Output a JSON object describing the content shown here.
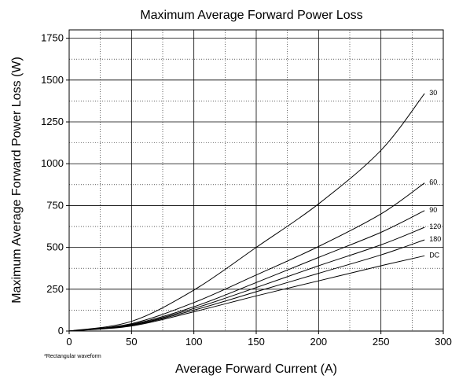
{
  "chart_data": {
    "type": "line",
    "title": "Maximum Average Forward Power Loss",
    "xlabel": "Average Forward Current (A)",
    "ylabel": "Maximum Average Forward Power Loss (W)",
    "xlim": [
      0,
      300
    ],
    "ylim": [
      0,
      1800
    ],
    "x_ticks": [
      0,
      50,
      100,
      150,
      200,
      250,
      300
    ],
    "y_ticks": [
      0,
      250,
      500,
      750,
      1000,
      1250,
      1500,
      1750
    ],
    "grid": true,
    "footnote": "*Rectangular waveform",
    "series": [
      {
        "name": "30",
        "points": [
          [
            0,
            0
          ],
          [
            50,
            58
          ],
          [
            100,
            245
          ],
          [
            150,
            500
          ],
          [
            200,
            760
          ],
          [
            250,
            1080
          ],
          [
            285,
            1420
          ]
        ]
      },
      {
        "name": "60",
        "points": [
          [
            0,
            0
          ],
          [
            50,
            44
          ],
          [
            100,
            170
          ],
          [
            150,
            335
          ],
          [
            200,
            505
          ],
          [
            250,
            700
          ],
          [
            285,
            885
          ]
        ]
      },
      {
        "name": "90",
        "points": [
          [
            0,
            0
          ],
          [
            50,
            40
          ],
          [
            100,
            145
          ],
          [
            150,
            290
          ],
          [
            200,
            440
          ],
          [
            250,
            590
          ],
          [
            285,
            720
          ]
        ]
      },
      {
        "name": "120",
        "points": [
          [
            0,
            0
          ],
          [
            50,
            36
          ],
          [
            100,
            135
          ],
          [
            150,
            260
          ],
          [
            200,
            390
          ],
          [
            250,
            515
          ],
          [
            285,
            620
          ]
        ]
      },
      {
        "name": "180",
        "points": [
          [
            0,
            0
          ],
          [
            50,
            34
          ],
          [
            100,
            125
          ],
          [
            150,
            235
          ],
          [
            200,
            345
          ],
          [
            250,
            455
          ],
          [
            285,
            545
          ]
        ]
      },
      {
        "name": "DC",
        "points": [
          [
            0,
            0
          ],
          [
            50,
            30
          ],
          [
            100,
            115
          ],
          [
            150,
            210
          ],
          [
            200,
            300
          ],
          [
            250,
            390
          ],
          [
            285,
            450
          ]
        ]
      }
    ]
  }
}
